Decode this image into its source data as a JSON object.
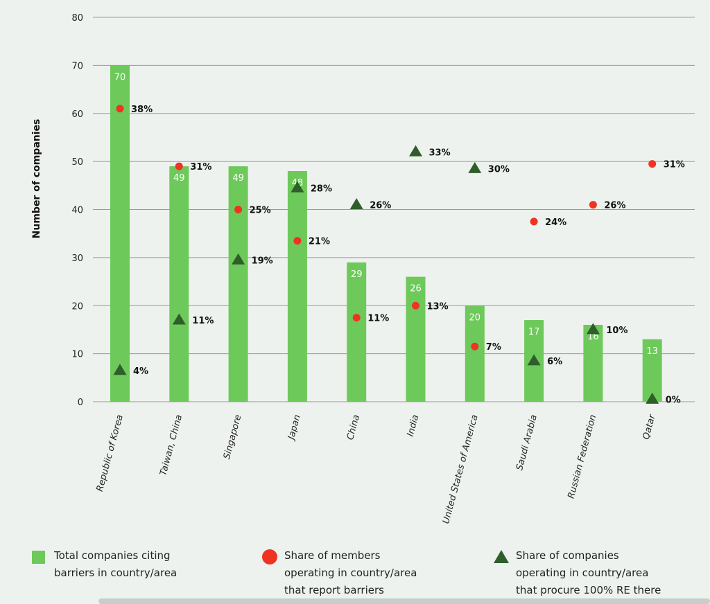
{
  "chart_data": {
    "type": "bar",
    "ylabel": "Number of companies",
    "ylim": [
      0,
      80
    ],
    "yticks": [
      0,
      10,
      20,
      30,
      40,
      50,
      60,
      70,
      80
    ],
    "categories": [
      "Republic of Korea",
      "Taiwan, China",
      "Singapore",
      "Japan",
      "China",
      "India",
      "United States of America",
      "Saudi Arabia",
      "Russian Federation",
      "Qatar"
    ],
    "series": [
      {
        "name": "Total companies citing barriers in country/area",
        "kind": "bar",
        "values": [
          70,
          49,
          49,
          48,
          29,
          26,
          20,
          17,
          16,
          13
        ],
        "labels": [
          "70",
          "49",
          "49",
          "48",
          "29",
          "26",
          "20",
          "17",
          "16",
          "13"
        ]
      },
      {
        "name": "Share of members operating in country/area that report barriers",
        "kind": "circle",
        "values": [
          61,
          49,
          40,
          33.5,
          17.5,
          20,
          11.5,
          37.5,
          41,
          49.5
        ],
        "labels": [
          "38%",
          "31%",
          "25%",
          "21%",
          "11%",
          "13%",
          "7%",
          "24%",
          "26%",
          "31%"
        ]
      },
      {
        "name": "Share of companies operating in country/area that procure 100% RE there",
        "kind": "triangle",
        "values": [
          6.5,
          17,
          29.5,
          44.5,
          41,
          52,
          48.5,
          8.5,
          15,
          0.5
        ],
        "labels": [
          "4%",
          "11%",
          "19%",
          "28%",
          "26%",
          "33%",
          "30%",
          "6%",
          "10%",
          "0%"
        ]
      }
    ],
    "legend_position": "bottom",
    "grid": true,
    "colors": {
      "bar": "#6dc95a",
      "circle": "#ee3322",
      "triangle": "#2f5e2a",
      "grid": "#999999"
    }
  },
  "legend": [
    {
      "label": "Total companies citing\nbarriers in country/area",
      "icon": "square"
    },
    {
      "label": "Share of members\noperating in country/area\nthat report barriers",
      "icon": "circle"
    },
    {
      "label": "Share of companies\noperating in country/area\nthat procure 100% RE there",
      "icon": "triangle"
    }
  ]
}
